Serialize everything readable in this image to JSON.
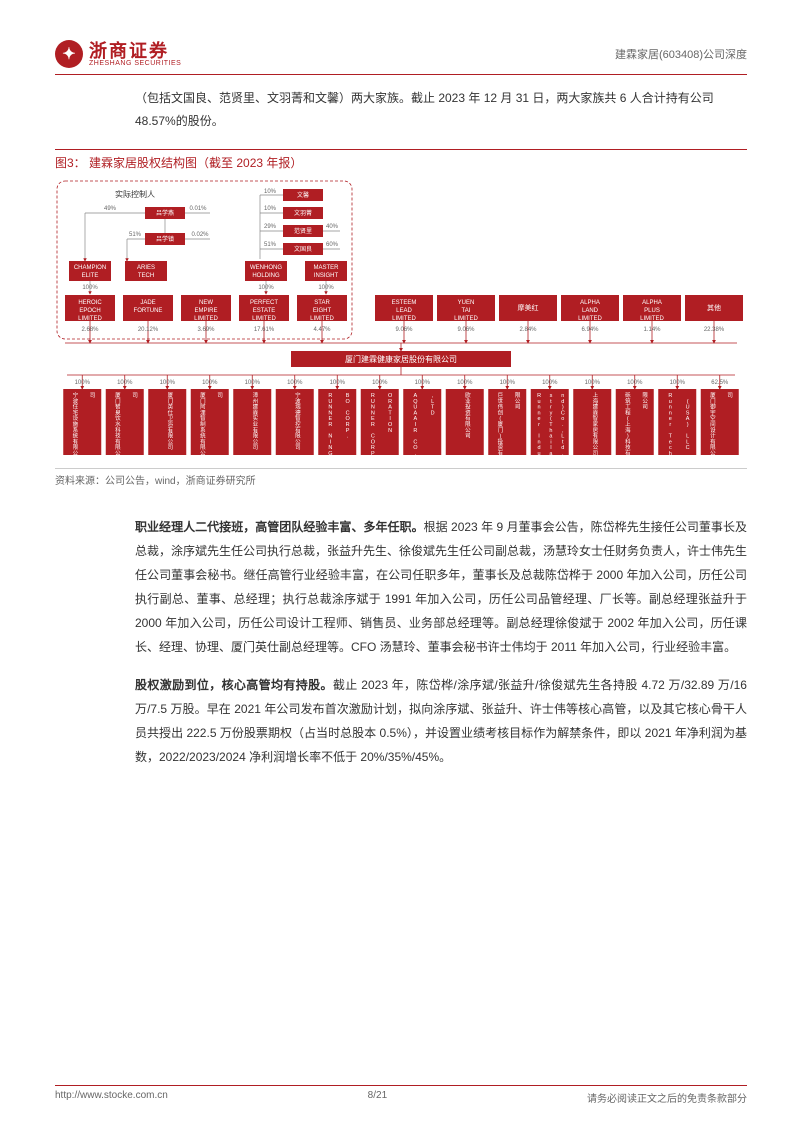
{
  "header": {
    "logo_cn": "浙商证券",
    "logo_en": "ZHESHANG SECURITIES",
    "right": "建霖家居(603408)公司深度"
  },
  "intro": "（包括文国良、范贤里、文羽菁和文馨）两大家族。截止 2023 年 12 月 31 日，两大家族共 6 人合计持有公司 48.57%的股份。",
  "figure": {
    "label": "图3：",
    "title": "建霖家居股权结构图（截至 2023 年报）",
    "source": "资料来源：公司公告，wind，浙商证券研究所",
    "controller_label": "实际控制人",
    "persons": {
      "p1": "吕学燕",
      "p2": "吕学镇",
      "p3": "文馨",
      "p4": "文羽菁",
      "p5": "范贤里",
      "p6": "文国良"
    },
    "person_pcts": {
      "p1a": "49%",
      "p1b": "0.01%",
      "p2a": "51%",
      "p2b": "0.02%",
      "p3": "10%",
      "p4": "10%",
      "p5": "29%",
      "p6a": "51%",
      "p6b": "40%",
      "p6c": "60%"
    },
    "upper_boxes": [
      {
        "name": "CHAMPION ELITE",
        "pct": "100%"
      },
      {
        "name": "ARIES TECH",
        "pct": ""
      },
      {
        "name": "WENHONG HOLDING",
        "pct": "100%"
      },
      {
        "name": "MASTER INSIGHT",
        "pct": "100%"
      }
    ],
    "mid_boxes": [
      {
        "name": "HEROIC EPOCH LIMITED",
        "pct": "2.68%"
      },
      {
        "name": "JADE FORTUNE",
        "pct": "20.12%"
      },
      {
        "name": "NEW EMPIRE LIMITED",
        "pct": "3.69%"
      },
      {
        "name": "PERFECT ESTATE LIMITED",
        "pct": "17.61%"
      },
      {
        "name": "STAR EIGHT LIMITED",
        "pct": "4.47%"
      }
    ],
    "right_shareholders": [
      {
        "name": "ESTEEM LEAD LIMITED",
        "pct": "9.06%"
      },
      {
        "name": "YUEN TAI LIMITED",
        "pct": "9.06%"
      },
      {
        "name": "摩美红",
        "pct": "2.84%"
      },
      {
        "name": "ALPHA LAND LIMITED",
        "pct": "6.94%"
      },
      {
        "name": "ALPHA PLUS LIMITED",
        "pct": "1.14%"
      },
      {
        "name": "其他",
        "pct": "22.38%"
      }
    ],
    "company": "厦门建霖健康家居股份有限公司",
    "subsidiaries": [
      {
        "name": "宁波住宅设施系统有限公司",
        "pct": "100%"
      },
      {
        "name": "厦门智泉饮水科技有限公司",
        "pct": "100%"
      },
      {
        "name": "厦门英仕卫浴有限公司",
        "pct": "100%"
      },
      {
        "name": "厦门阿浬智制系统有限公司",
        "pct": "100%"
      },
      {
        "name": "漳州建霖实业有限公司",
        "pct": "100%"
      },
      {
        "name": "宁波瑞德智控有限公司",
        "pct": "100%"
      },
      {
        "name": "RUNNER NINGBO CORP.",
        "pct": "100%"
      },
      {
        "name": "RUNNER CORPORATION",
        "pct": "100%"
      },
      {
        "name": "AQUAAIR CO.,LTD",
        "pct": "100%"
      },
      {
        "name": "欧业投资有限公司",
        "pct": "100%"
      },
      {
        "name": "巨世伟创(厦门)投资有限公司",
        "pct": "100%"
      },
      {
        "name": "Runner Industry(Thailand)Co.,Ltd.",
        "pct": "100%"
      },
      {
        "name": "上海建霖智家居有限公司",
        "pct": "100%"
      },
      {
        "name": "砾筑工程(上海)科技有限公司",
        "pct": "100%"
      },
      {
        "name": "Runner Tech (USA) LLC",
        "pct": "100%"
      },
      {
        "name": "厦门御宇空间设计有限公司",
        "pct": "62.5%"
      }
    ]
  },
  "para1_lead": "职业经理人二代接班，高管团队经验丰富、多年任职。",
  "para1_body": "根据 2023 年 9 月董事会公告，陈岱桦先生接任公司董事长及总裁，涂序斌先生任公司执行总裁，张益升先生、徐俊斌先生任公司副总裁，汤慧玲女士任财务负责人，许士伟先生任公司董事会秘书。继任高管行业经验丰富，在公司任职多年，董事长及总裁陈岱桦于 2000 年加入公司，历任公司执行副总、董事、总经理；执行总裁涂序斌于 1991 年加入公司，历任公司品管经理、厂长等。副总经理张益升于 2000 年加入公司，历任公司设计工程师、销售员、业务部总经理等。副总经理徐俊斌于 2002 年加入公司，历任课长、经理、协理、厦门英仕副总经理等。CFO 汤慧玲、董事会秘书许士伟均于 2011 年加入公司，行业经验丰富。",
  "para2_lead": "股权激励到位，核心高管均有持股。",
  "para2_body": "截止 2023 年，陈岱桦/涂序斌/张益升/徐俊斌先生各持股 4.72 万/32.89 万/16 万/7.5 万股。早在 2021 年公司发布首次激励计划，拟向涂序斌、张益升、许士伟等核心高管，以及其它核心骨干人员共授出 222.5 万份股票期权（占当时总股本 0.5%），并设置业绩考核目标作为解禁条件，即以 2021 年净利润为基数，2022/2023/2024 净利润增长率不低于 20%/35%/45%。",
  "footer": {
    "url": "http://www.stocke.com.cn",
    "page": "8/21",
    "disclaimer": "请务必阅读正文之后的免责条款部分"
  },
  "colors": {
    "brand": "#b01e23",
    "text": "#333333",
    "muted": "#666666"
  }
}
